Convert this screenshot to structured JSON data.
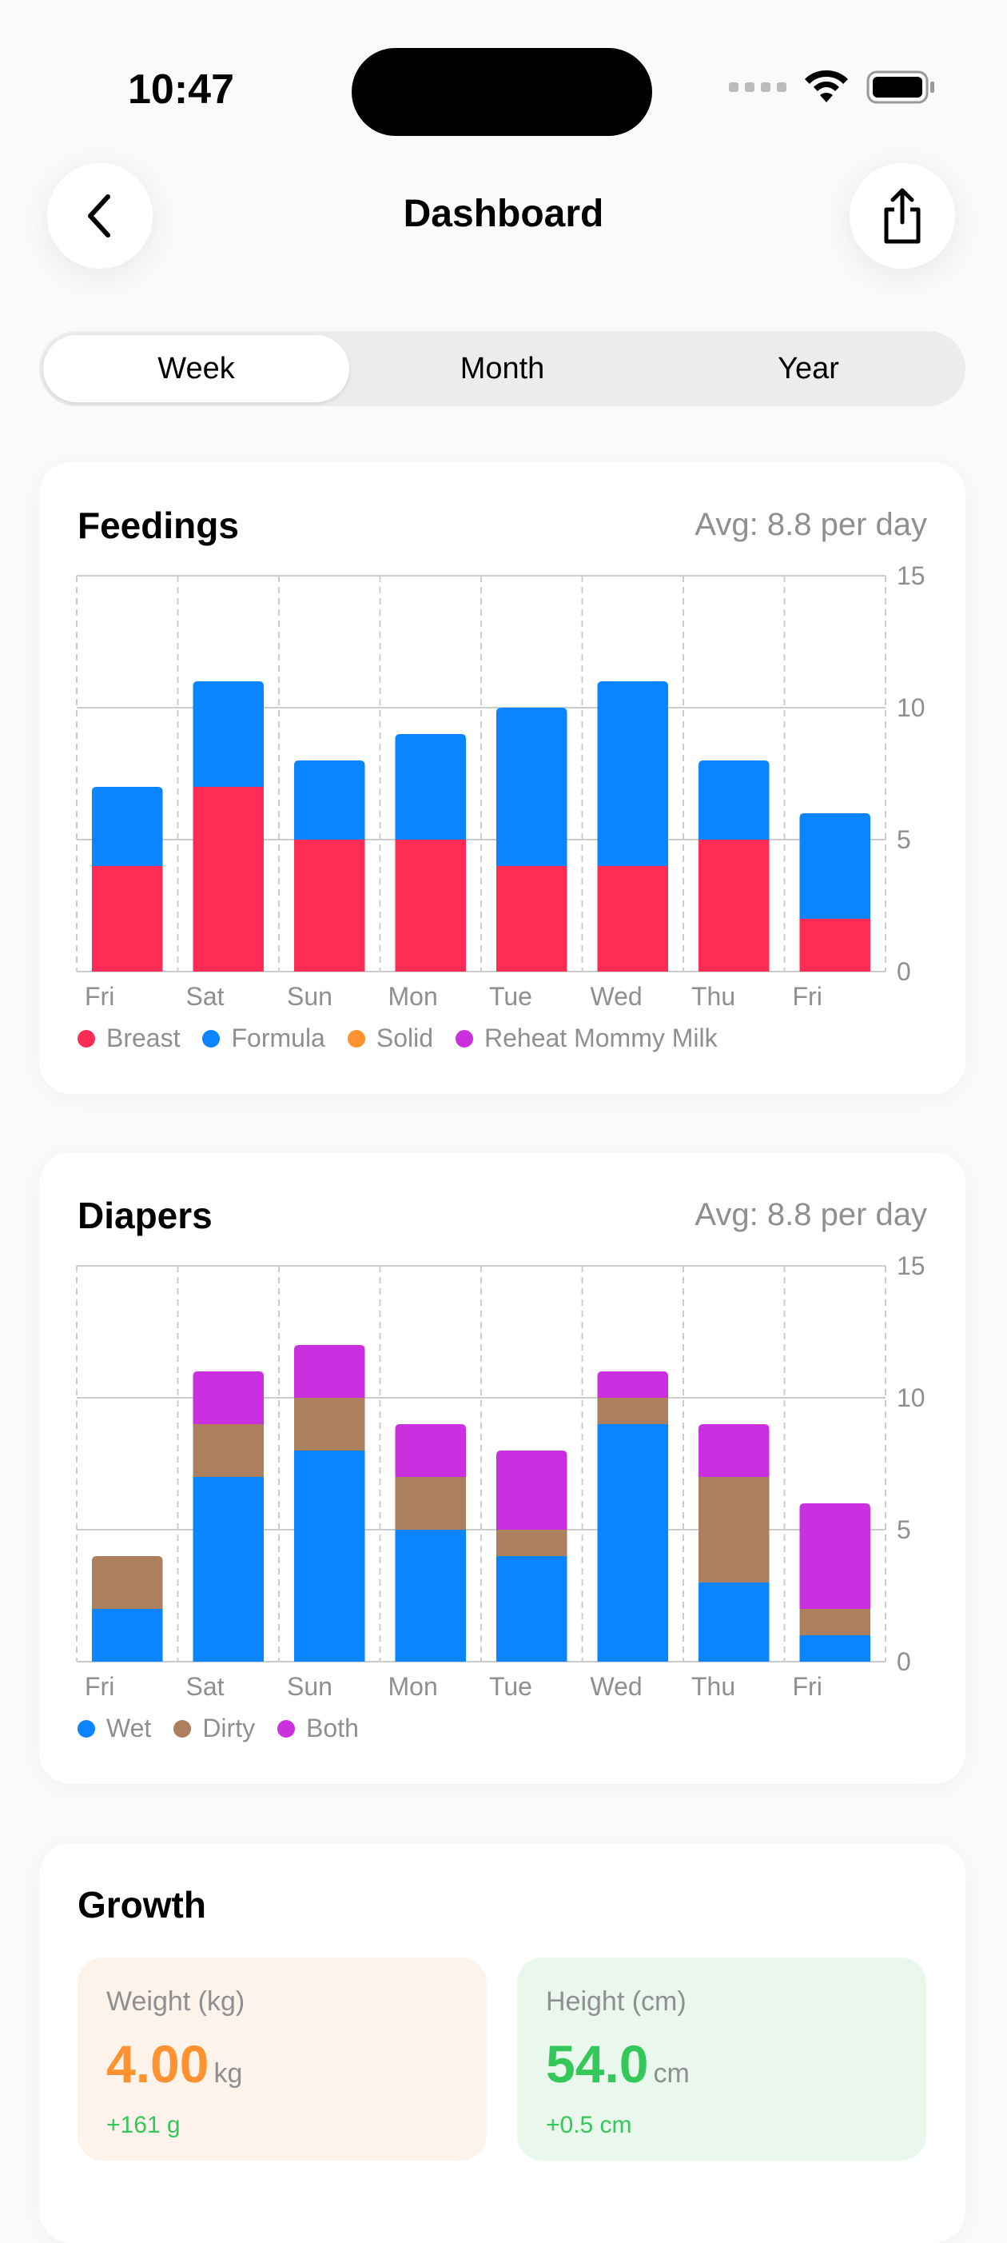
{
  "status": {
    "time": "10:47"
  },
  "header": {
    "title": "Dashboard",
    "back_icon": "chevron-left-icon",
    "share_icon": "share-icon"
  },
  "tabs": [
    {
      "label": "Week",
      "selected": true
    },
    {
      "label": "Month",
      "selected": false
    },
    {
      "label": "Year",
      "selected": false
    }
  ],
  "feedings": {
    "title": "Feedings",
    "avg": "Avg: 8.8 per day"
  },
  "diapers": {
    "title": "Diapers",
    "avg": "Avg: 8.8 per day"
  },
  "growth": {
    "title": "Growth",
    "weight": {
      "label": "Weight (kg)",
      "value": "4.00",
      "unit": "kg",
      "delta": "+161 g",
      "color": "#ff9230"
    },
    "height": {
      "label": "Height (cm)",
      "value": "54.0",
      "unit": "cm",
      "delta": "+0.5 cm",
      "color": "#34c759"
    }
  },
  "chart_data": [
    {
      "type": "bar",
      "stacked": true,
      "categories": [
        "Fri",
        "Sat",
        "Sun",
        "Mon",
        "Tue",
        "Wed",
        "Thu",
        "Fri"
      ],
      "ylim": [
        0,
        15
      ],
      "yticks": [
        0,
        5,
        10,
        15
      ],
      "grid": true,
      "legend": "bottom-left",
      "series": [
        {
          "name": "Breast",
          "color": "#ff2d55",
          "values": [
            4,
            7,
            5,
            5,
            4,
            4,
            5,
            2
          ]
        },
        {
          "name": "Formula",
          "color": "#0a84ff",
          "values": [
            3,
            4,
            3,
            4,
            6,
            7,
            3,
            4
          ]
        },
        {
          "name": "Solid",
          "color": "#ff9230",
          "values": [
            0,
            0,
            0,
            0,
            0,
            0,
            0,
            0
          ]
        },
        {
          "name": "Reheat Mommy Milk",
          "color": "#cb30e0",
          "values": [
            0,
            0,
            0,
            0,
            0,
            0,
            0,
            0
          ]
        }
      ]
    },
    {
      "type": "bar",
      "stacked": true,
      "categories": [
        "Fri",
        "Sat",
        "Sun",
        "Mon",
        "Tue",
        "Wed",
        "Thu",
        "Fri"
      ],
      "ylim": [
        0,
        15
      ],
      "yticks": [
        0,
        5,
        10,
        15
      ],
      "grid": true,
      "legend": "bottom-left",
      "series": [
        {
          "name": "Wet",
          "color": "#0a84ff",
          "values": [
            2,
            7,
            8,
            5,
            4,
            9,
            3,
            1
          ]
        },
        {
          "name": "Dirty",
          "color": "#ac7f5e",
          "values": [
            2,
            2,
            2,
            2,
            1,
            1,
            4,
            1
          ]
        },
        {
          "name": "Both",
          "color": "#cb30e0",
          "values": [
            0,
            2,
            2,
            2,
            3,
            1,
            2,
            4
          ]
        }
      ]
    }
  ]
}
